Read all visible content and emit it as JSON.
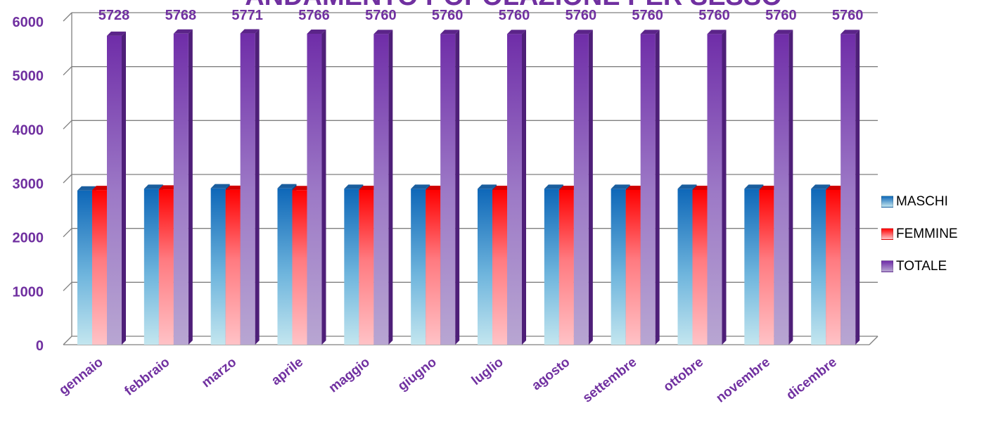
{
  "chart_data": {
    "type": "bar",
    "title": "ANDAMENTO POPOLAZIONE PER SESSO",
    "xlabel": "",
    "ylabel": "",
    "ylim": [
      0,
      6000
    ],
    "yticks": [
      0,
      1000,
      2000,
      3000,
      4000,
      5000,
      6000
    ],
    "grid": true,
    "legend_position": "right",
    "categories": [
      "gennaio",
      "febbraio",
      "marzo",
      "aprile",
      "maggio",
      "giugno",
      "luglio",
      "agosto",
      "settembre",
      "ottobre",
      "novembre",
      "dicembre"
    ],
    "series": [
      {
        "name": "MASCHI",
        "color": "#1f77c4",
        "values": [
          2860,
          2890,
          2900,
          2900,
          2890,
          2890,
          2890,
          2890,
          2890,
          2890,
          2890,
          2890
        ]
      },
      {
        "name": "FEMMINE",
        "color": "#ff1a1a",
        "values": [
          2868,
          2878,
          2871,
          2866,
          2870,
          2870,
          2870,
          2870,
          2870,
          2870,
          2870,
          2870
        ]
      },
      {
        "name": "TOTALE",
        "color": "#7030a0",
        "values": [
          5728,
          5768,
          5771,
          5766,
          5760,
          5760,
          5760,
          5760,
          5760,
          5760,
          5760,
          5760
        ]
      }
    ],
    "data_labels": [
      "5728",
      "5768",
      "5771",
      "5766",
      "5760",
      "5760",
      "5760",
      "5760",
      "5760",
      "5760",
      "5760",
      "5760"
    ]
  },
  "colors": {
    "axis_text": "#7030a0",
    "grid": "#7f7f7f"
  }
}
